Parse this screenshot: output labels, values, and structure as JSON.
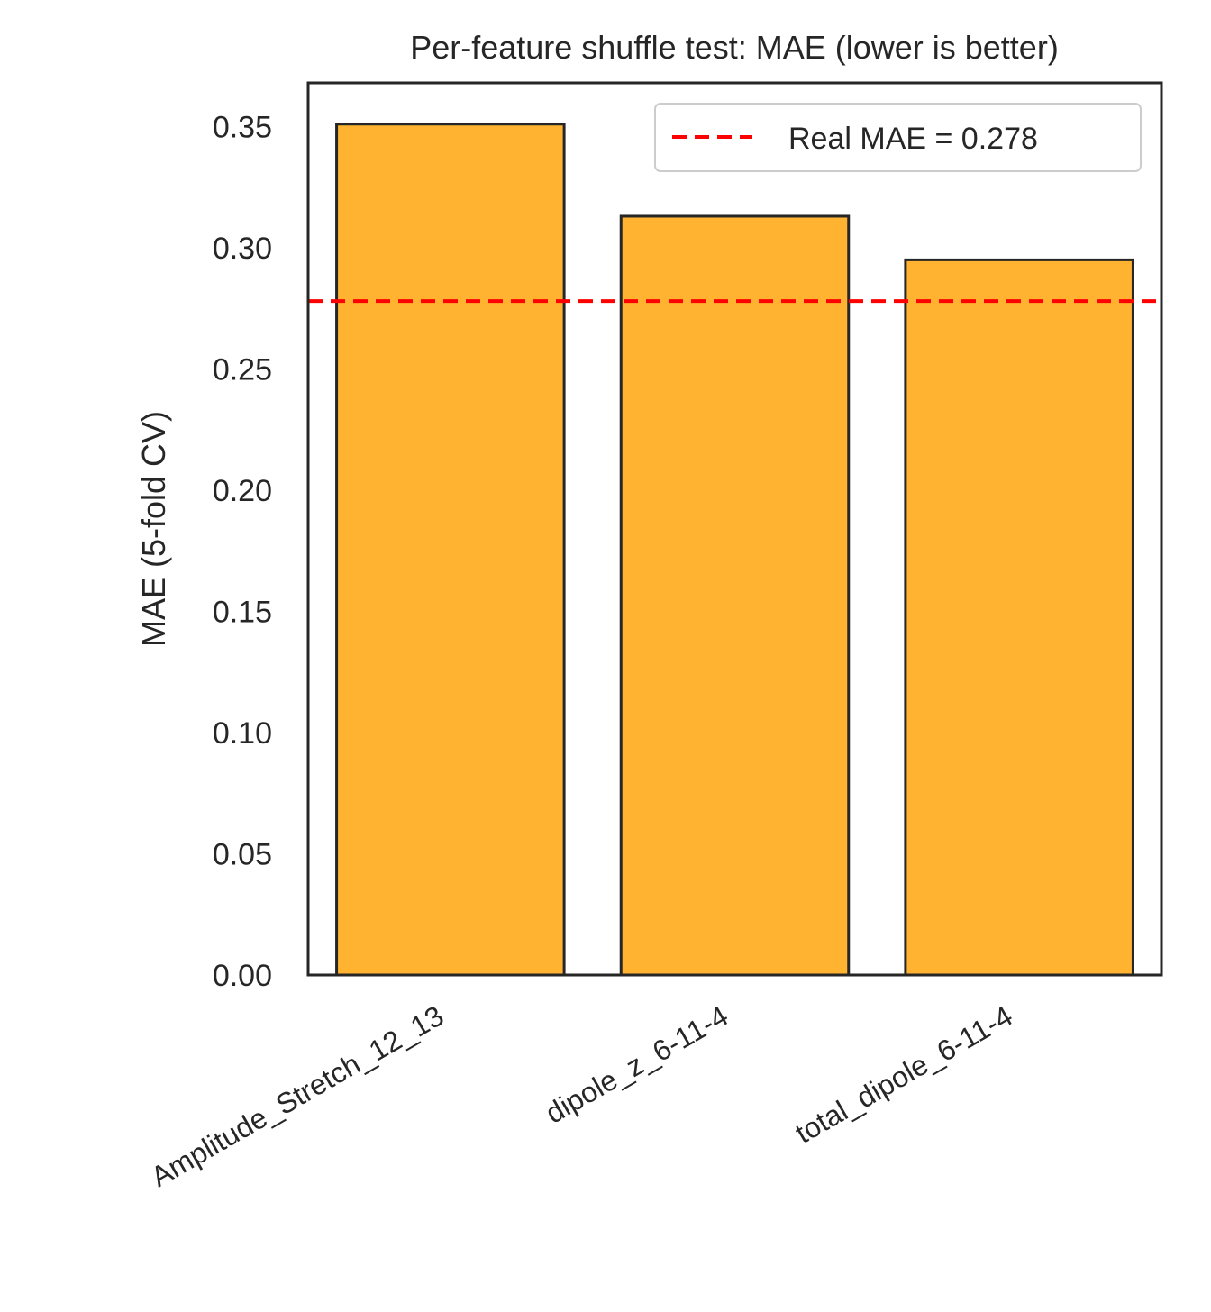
{
  "chart_data": {
    "type": "bar",
    "title": "Per-feature shuffle test: MAE (lower is better)",
    "xlabel": "",
    "ylabel": "MAE (5-fold CV)",
    "categories": [
      "Amplitude_Stretch_12_13",
      "dipole_z_6-11-4",
      "total_dipole_6-11-4"
    ],
    "values": [
      0.351,
      0.313,
      0.295
    ],
    "ylim": [
      0,
      0.368
    ],
    "yticks": [
      "0.00",
      "0.05",
      "0.10",
      "0.15",
      "0.20",
      "0.25",
      "0.30",
      "0.35"
    ],
    "reference_line": {
      "value": 0.278,
      "label": "Real MAE = 0.278",
      "color": "#ff0000",
      "style": "dashed"
    },
    "bar_color": "#ffb331",
    "bar_edge_color": "#262626",
    "grid": false,
    "legend_position": "top-right"
  }
}
